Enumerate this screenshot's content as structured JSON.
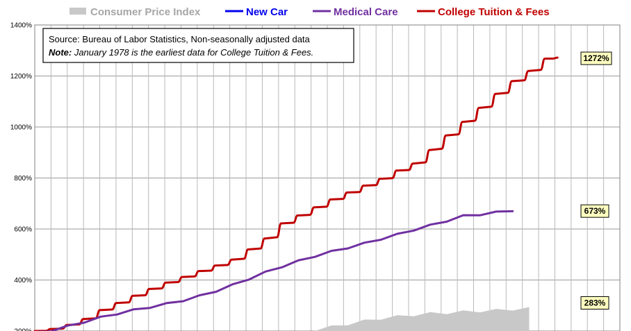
{
  "chart_data": {
    "type": "line",
    "legend": {
      "placement": "top",
      "items": [
        {
          "label": "Consumer Price Index",
          "color": "#c8c8c8",
          "kind": "area"
        },
        {
          "label": "New Car",
          "color": "#0000ee",
          "kind": "line"
        },
        {
          "label": "Medical Care",
          "color": "#7030a0",
          "kind": "line"
        },
        {
          "label": "College Tuition & Fees",
          "color": "#c00000",
          "kind": "line"
        }
      ]
    },
    "note": {
      "source": "Source:  Bureau of Labor Statistics, Non-seasonally adjusted data",
      "note_label": "Note:",
      "note_text": " January 1978 is the earliest data for College Tuition & Fees."
    },
    "y_axis": {
      "ylim": [
        200,
        1400
      ],
      "ticks": [
        "1400%",
        "1200%",
        "1000%",
        "800%",
        "600%",
        "400%",
        "200%"
      ],
      "tick_values": [
        1400,
        1200,
        1000,
        800,
        600,
        400,
        200
      ],
      "grid": true
    },
    "x_axis": {
      "xlim": [
        1978,
        2013.5
      ],
      "vertical_gridlines": 35,
      "tick_labels_visible": false
    },
    "series": [
      {
        "name": "College Tuition & Fees",
        "color": "#c00000",
        "style": "stepped-annual",
        "end_label": "1272%",
        "points": [
          [
            1978,
            200
          ],
          [
            1979,
            208
          ],
          [
            1980,
            224
          ],
          [
            1981,
            247
          ],
          [
            1982,
            282
          ],
          [
            1983,
            310
          ],
          [
            1984,
            338
          ],
          [
            1985,
            365
          ],
          [
            1986,
            390
          ],
          [
            1987,
            412
          ],
          [
            1988,
            435
          ],
          [
            1989,
            457
          ],
          [
            1990,
            480
          ],
          [
            1991,
            520
          ],
          [
            1992,
            563
          ],
          [
            1993,
            622
          ],
          [
            1994,
            653
          ],
          [
            1995,
            685
          ],
          [
            1996,
            716
          ],
          [
            1997,
            743
          ],
          [
            1998,
            770
          ],
          [
            1999,
            797
          ],
          [
            2000,
            829
          ],
          [
            2001,
            857
          ],
          [
            2002,
            910
          ],
          [
            2003,
            967
          ],
          [
            2004,
            1020
          ],
          [
            2005,
            1075
          ],
          [
            2006,
            1130
          ],
          [
            2007,
            1180
          ],
          [
            2008,
            1220
          ],
          [
            2009,
            1268
          ],
          [
            2009.7,
            1272
          ]
        ]
      },
      {
        "name": "Medical Care",
        "color": "#7030a0",
        "style": "smooth",
        "end_label": "673%",
        "points": [
          [
            1978,
            193
          ],
          [
            1979,
            202
          ],
          [
            1980,
            218
          ],
          [
            1981,
            236
          ],
          [
            1982,
            253
          ],
          [
            1983,
            268
          ],
          [
            1984,
            282
          ],
          [
            1985,
            294
          ],
          [
            1986,
            306
          ],
          [
            1987,
            320
          ],
          [
            1988,
            337
          ],
          [
            1989,
            357
          ],
          [
            1990,
            380
          ],
          [
            1991,
            405
          ],
          [
            1992,
            430
          ],
          [
            1993,
            453
          ],
          [
            1994,
            474
          ],
          [
            1995,
            494
          ],
          [
            1996,
            511
          ],
          [
            1997,
            527
          ],
          [
            1998,
            543
          ],
          [
            1999,
            561
          ],
          [
            2000,
            578
          ],
          [
            2001,
            597
          ],
          [
            2002,
            614
          ],
          [
            2003,
            632
          ],
          [
            2004,
            651
          ],
          [
            2005,
            657
          ],
          [
            2006,
            665
          ],
          [
            2007,
            673
          ]
        ]
      },
      {
        "name": "Consumer Price Index",
        "color": "#c8c8c8",
        "style": "area",
        "end_label": "283%",
        "points": [
          [
            1995,
            200
          ],
          [
            1996,
            211
          ],
          [
            1997,
            222
          ],
          [
            1998,
            234
          ],
          [
            1999,
            244
          ],
          [
            2000,
            251
          ],
          [
            2001,
            258
          ],
          [
            2002,
            263
          ],
          [
            2003,
            266
          ],
          [
            2004,
            270
          ],
          [
            2005,
            273
          ],
          [
            2006,
            276
          ],
          [
            2007,
            280
          ],
          [
            2008,
            283
          ]
        ]
      }
    ]
  }
}
